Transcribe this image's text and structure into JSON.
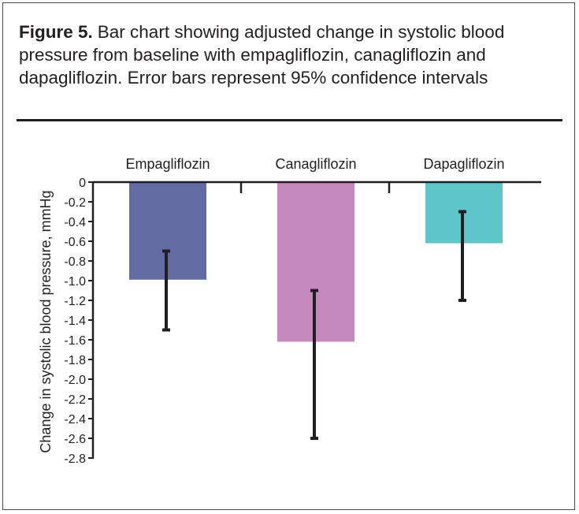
{
  "caption": {
    "label": "Figure 5.",
    "text": "Bar chart showing adjusted change in systolic blood pressure from baseline with empagliflozin, canagliflozin and dapagliflozin. Error bars represent 95% confidence intervals"
  },
  "chart_data": {
    "type": "bar",
    "title": "",
    "xlabel": "",
    "ylabel": "Change in systolic blood pressure, mmHg",
    "ylim": [
      -2.8,
      0
    ],
    "yticks": [
      "0",
      "-0.2",
      "-0.4",
      "-0.6",
      "-0.8",
      "-1.0",
      "-1.2",
      "-1.4",
      "-1.6",
      "-1.8",
      "-2.0",
      "-2.2",
      "-2.4",
      "-2.6",
      "-2.8"
    ],
    "categories": [
      "Empagliflozin",
      "Canagliflozin",
      "Dapagliflozin"
    ],
    "values": [
      -0.99,
      -1.62,
      -0.62
    ],
    "error_low": [
      -1.5,
      -2.6,
      -1.2
    ],
    "error_high": [
      -0.7,
      -1.1,
      -0.3
    ],
    "colors": [
      "#636ba3",
      "#c589bd",
      "#5ec6c9"
    ],
    "errorbar_color": "#231f20",
    "grid": false,
    "legend": "none",
    "category_label_position": "top"
  }
}
